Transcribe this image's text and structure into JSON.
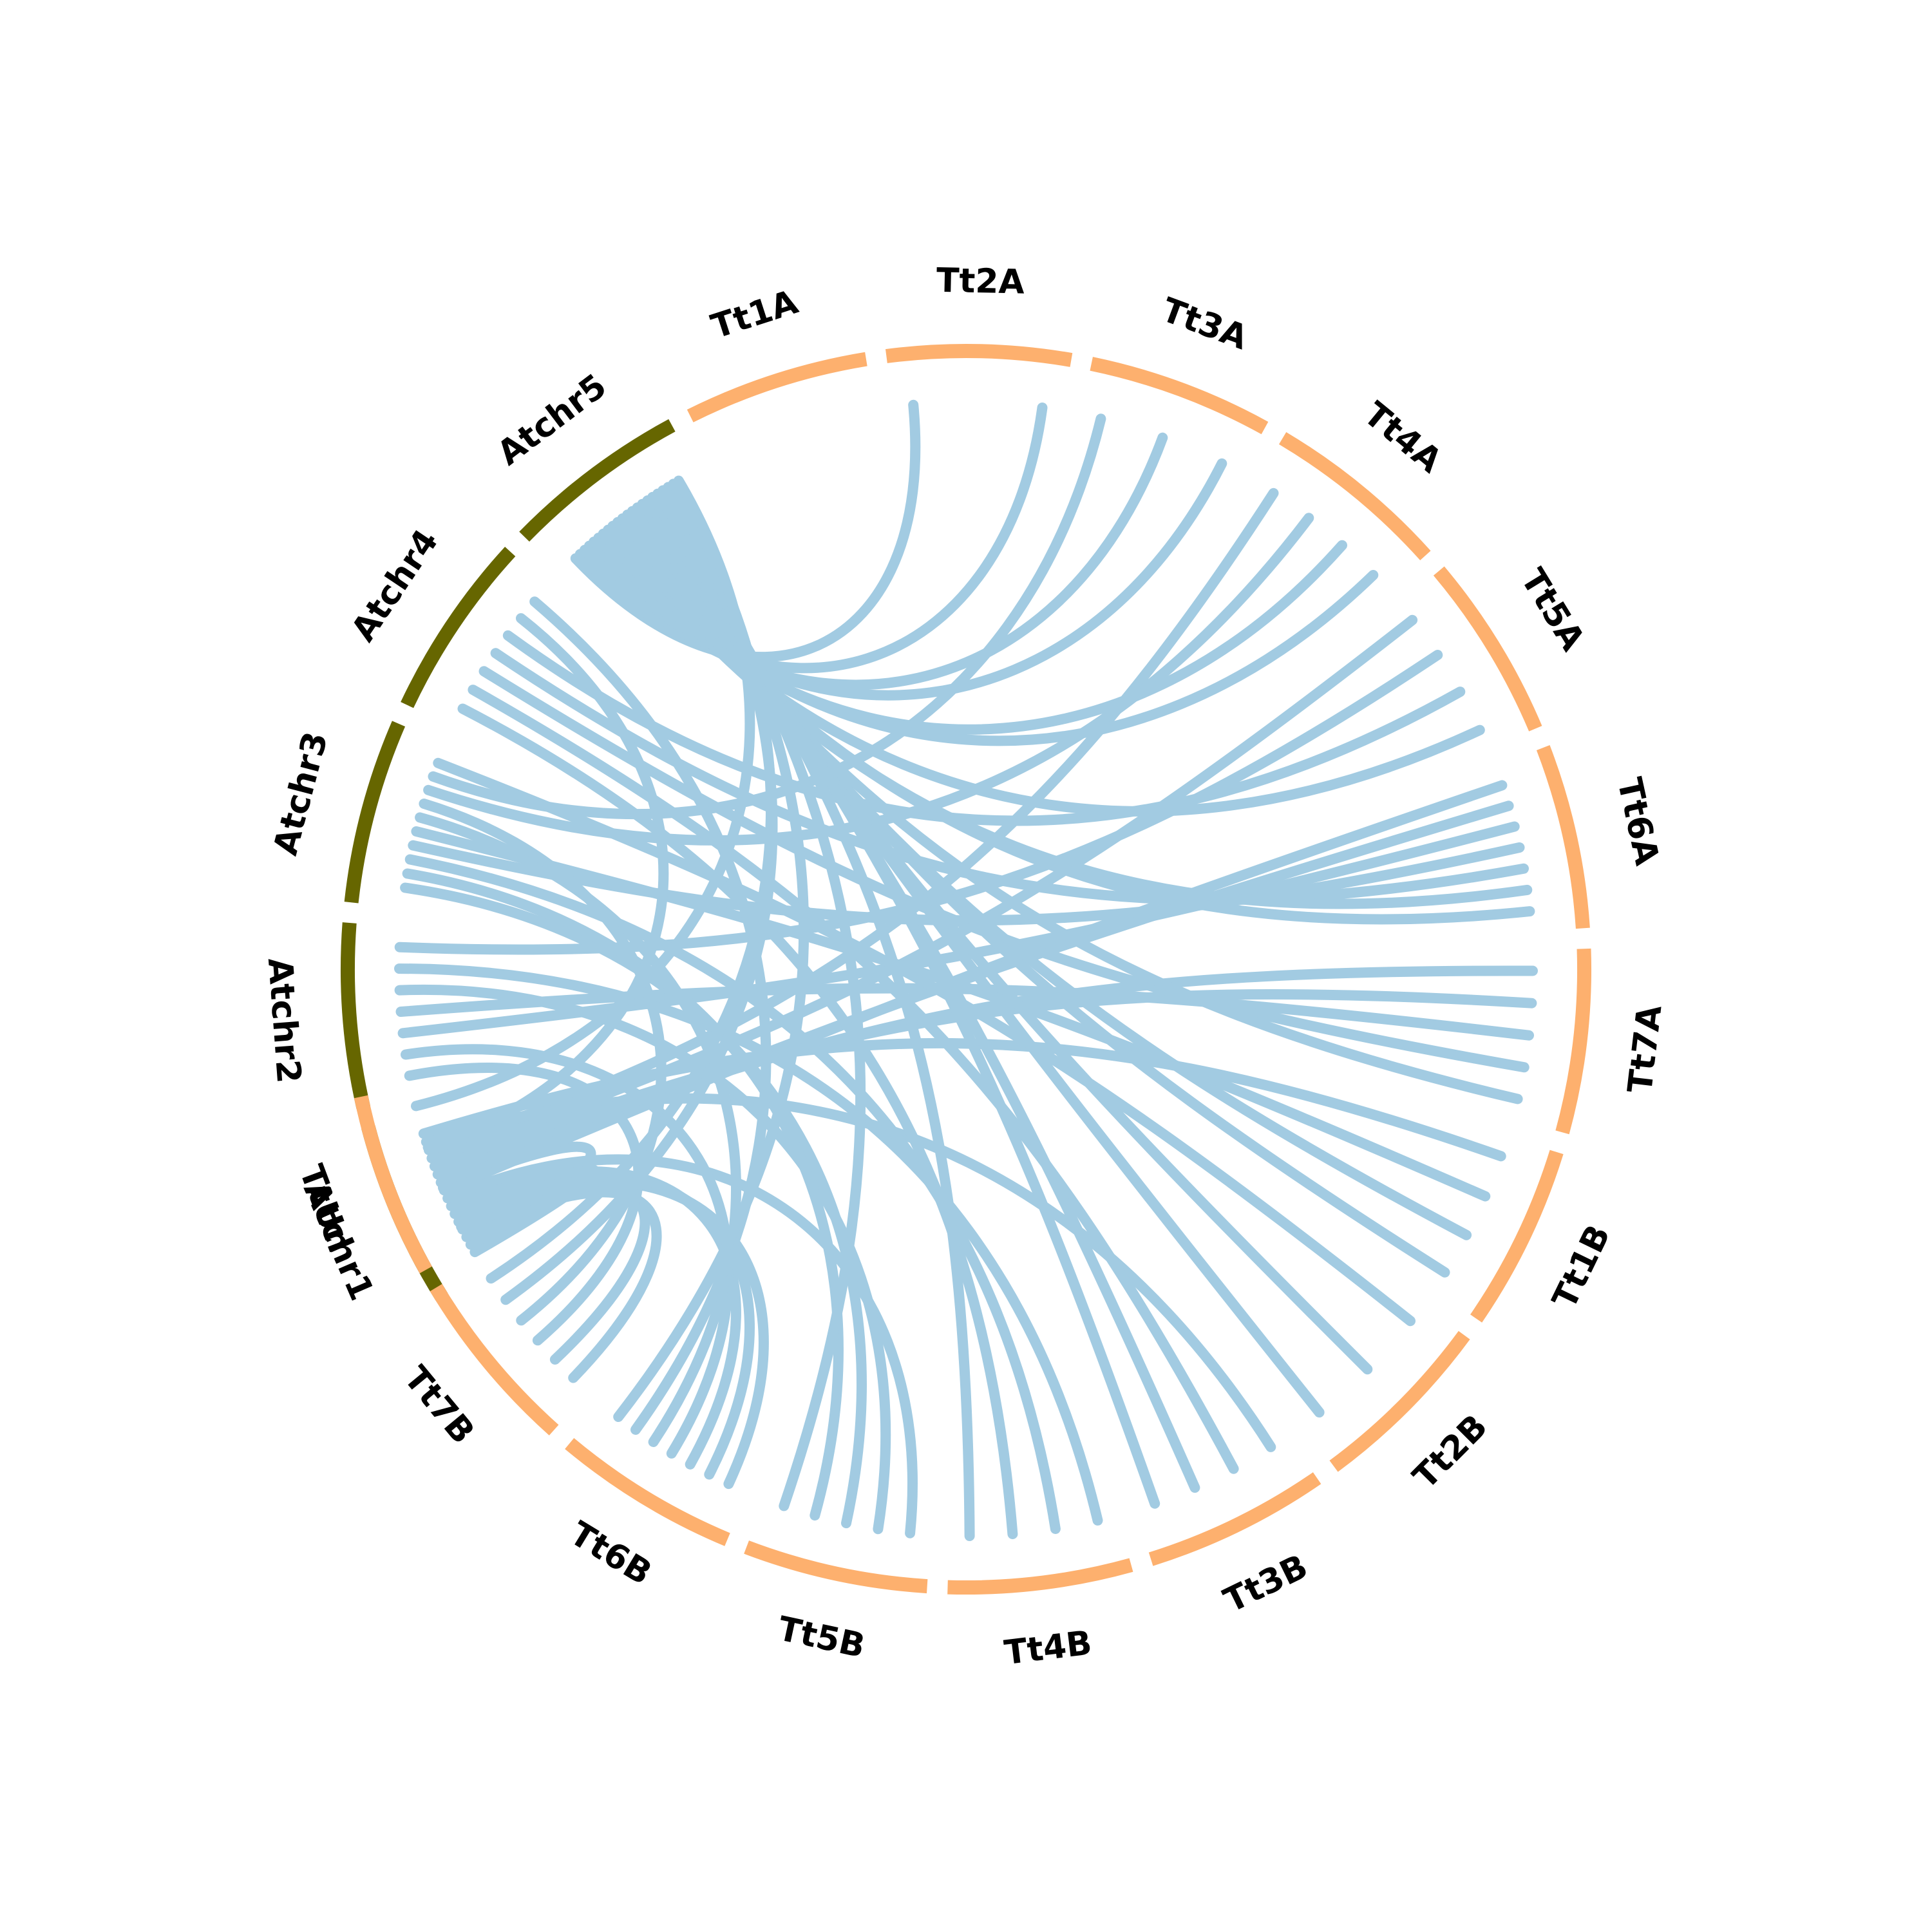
{
  "colors": {
    "arabidopsis": "#666600",
    "wheat": "#fdb06e",
    "link": "#a2cbe2"
  },
  "segments": [
    {
      "id": "Atchr1",
      "label": "Atchr1",
      "group": "arabidopsis"
    },
    {
      "id": "Atchr2",
      "label": "Atchr2",
      "group": "arabidopsis"
    },
    {
      "id": "Atchr3",
      "label": "Atchr3",
      "group": "arabidopsis"
    },
    {
      "id": "Atchr4",
      "label": "Atchr4",
      "group": "arabidopsis"
    },
    {
      "id": "Atchr5",
      "label": "Atchr5",
      "group": "arabidopsis"
    },
    {
      "id": "Tt1A",
      "label": "Tt1A",
      "group": "wheat"
    },
    {
      "id": "Tt2A",
      "label": "Tt2A",
      "group": "wheat"
    },
    {
      "id": "Tt3A",
      "label": "Tt3A",
      "group": "wheat"
    },
    {
      "id": "Tt4A",
      "label": "Tt4A",
      "group": "wheat"
    },
    {
      "id": "Tt5A",
      "label": "Tt5A",
      "group": "wheat"
    },
    {
      "id": "Tt6A",
      "label": "Tt6A",
      "group": "wheat"
    },
    {
      "id": "Tt7A",
      "label": "Tt7A",
      "group": "wheat"
    },
    {
      "id": "Tt1B",
      "label": "Tt1B",
      "group": "wheat"
    },
    {
      "id": "Tt2B",
      "label": "Tt2B",
      "group": "wheat"
    },
    {
      "id": "Tt3B",
      "label": "Tt3B",
      "group": "wheat"
    },
    {
      "id": "Tt4B",
      "label": "Tt4B",
      "group": "wheat"
    },
    {
      "id": "Tt5B",
      "label": "Tt5B",
      "group": "wheat"
    },
    {
      "id": "Tt6B",
      "label": "Tt6B",
      "group": "wheat"
    },
    {
      "id": "Tt7B",
      "label": "Tt7B",
      "group": "wheat"
    },
    {
      "id": "TtUn",
      "label": "TtUn",
      "group": "wheat"
    }
  ],
  "links": [
    {
      "from": "Atchr1",
      "to": "TtUn"
    },
    {
      "from": "Atchr1",
      "to": "TtUn"
    },
    {
      "from": "Atchr1",
      "to": "Tt7B"
    },
    {
      "from": "Atchr1",
      "to": "Tt7B"
    },
    {
      "from": "Atchr1",
      "to": "Tt6B"
    },
    {
      "from": "Atchr1",
      "to": "Tt6B"
    },
    {
      "from": "Atchr1",
      "to": "Tt6B"
    },
    {
      "from": "Atchr1",
      "to": "Tt5B"
    },
    {
      "from": "Atchr1",
      "to": "Tt6A"
    },
    {
      "from": "Atchr1",
      "to": "Tt6A"
    },
    {
      "from": "Atchr1",
      "to": "Tt7A"
    },
    {
      "from": "Atchr1",
      "to": "Tt7A"
    },
    {
      "from": "Atchr1",
      "to": "Tt5A"
    },
    {
      "from": "Atchr1",
      "to": "Tt4A"
    },
    {
      "from": "Atchr1",
      "to": "Tt3B"
    },
    {
      "from": "Atchr1",
      "to": "Tt1B"
    },
    {
      "from": "Atchr2",
      "to": "Tt7B"
    },
    {
      "from": "Atchr2",
      "to": "Tt6B"
    },
    {
      "from": "Atchr2",
      "to": "Tt6A"
    },
    {
      "from": "Atchr2",
      "to": "Tt7A"
    },
    {
      "from": "Atchr2",
      "to": "Tt5B"
    },
    {
      "from": "Atchr2",
      "to": "Tt4B"
    },
    {
      "from": "Atchr2",
      "to": "Tt5A"
    },
    {
      "from": "Atchr3",
      "to": "Tt5B"
    },
    {
      "from": "Atchr3",
      "to": "Tt5B"
    },
    {
      "from": "Atchr3",
      "to": "Tt4B"
    },
    {
      "from": "Atchr3",
      "to": "Tt6A"
    },
    {
      "from": "Atchr3",
      "to": "Tt1B"
    },
    {
      "from": "Atchr3",
      "to": "Tt6B"
    },
    {
      "from": "Atchr3",
      "to": "Tt7B"
    },
    {
      "from": "Atchr3",
      "to": "Tt4A"
    },
    {
      "from": "Atchr3",
      "to": "Tt3A"
    },
    {
      "from": "Atchr3",
      "to": "Tt2B"
    },
    {
      "from": "Atchr4",
      "to": "Tt4B"
    },
    {
      "from": "Atchr4",
      "to": "Tt3B"
    },
    {
      "from": "Atchr4",
      "to": "Tt7A"
    },
    {
      "from": "Atchr4",
      "to": "Tt6A"
    },
    {
      "from": "Atchr4",
      "to": "Tt5A"
    },
    {
      "from": "Atchr4",
      "to": "TtUn"
    },
    {
      "from": "Atchr4",
      "to": "Tt6B"
    },
    {
      "from": "Atchr5",
      "to": "Tt2A"
    },
    {
      "from": "Atchr5",
      "to": "Tt2A"
    },
    {
      "from": "Atchr5",
      "to": "Tt3A"
    },
    {
      "from": "Atchr5",
      "to": "Tt3A"
    },
    {
      "from": "Atchr5",
      "to": "Tt4A"
    },
    {
      "from": "Atchr5",
      "to": "Tt4A"
    },
    {
      "from": "Atchr5",
      "to": "Tt5A"
    },
    {
      "from": "Atchr5",
      "to": "Tt6A"
    },
    {
      "from": "Atchr5",
      "to": "Tt6A"
    },
    {
      "from": "Atchr5",
      "to": "Tt7A"
    },
    {
      "from": "Atchr5",
      "to": "Tt1B"
    },
    {
      "from": "Atchr5",
      "to": "Tt1B"
    },
    {
      "from": "Atchr5",
      "to": "Tt2B"
    },
    {
      "from": "Atchr5",
      "to": "Tt2B"
    },
    {
      "from": "Atchr5",
      "to": "Tt3B"
    },
    {
      "from": "Atchr5",
      "to": "Tt3B"
    },
    {
      "from": "Atchr5",
      "to": "Tt4B"
    },
    {
      "from": "Atchr5",
      "to": "Tt5B"
    },
    {
      "from": "Atchr5",
      "to": "Tt6B"
    },
    {
      "from": "Atchr5",
      "to": "Tt7B"
    },
    {
      "from": "Atchr5",
      "to": "Tt7B"
    },
    {
      "from": "Atchr5",
      "to": "TtUn"
    }
  ]
}
